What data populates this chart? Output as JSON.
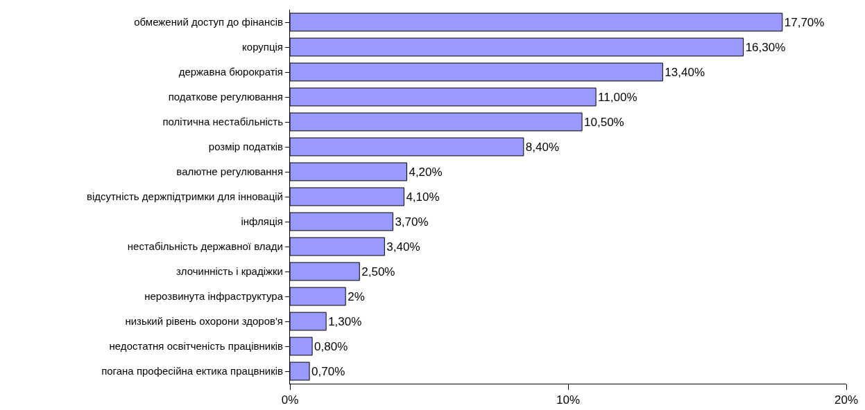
{
  "chart_data": {
    "type": "bar",
    "orientation": "horizontal",
    "categories": [
      "обмежений доступ до фінансів",
      "корупція",
      "державна бюрократія",
      "податкове регулювання",
      "політична нестабільність",
      "розмір податків",
      "валютне регулювання",
      "відсутність держпідтримки для інновацій",
      "інфляція",
      "нестабільність державної влади",
      "злочинність і крадіжки",
      "нерозвинута інфраструктура",
      "низький рівень охорони здоров'я",
      "недостатня освітченість працівників",
      "погана професійна ектика працвників"
    ],
    "values": [
      17.7,
      16.3,
      13.4,
      11.0,
      10.5,
      8.4,
      4.2,
      4.1,
      3.7,
      3.4,
      2.5,
      2,
      1.3,
      0.8,
      0.7
    ],
    "value_labels": [
      "17,70%",
      "16,30%",
      "13,40%",
      "11,00%",
      "10,50%",
      "8,40%",
      "4,20%",
      "4,10%",
      "3,70%",
      "3,40%",
      "2,50%",
      "2%",
      "1,30%",
      "0,80%",
      "0,70%"
    ],
    "color": "#9999ff",
    "xlim": [
      0,
      20
    ],
    "xticks": [
      {
        "value": 0,
        "label": "0%"
      },
      {
        "value": 10,
        "label": "10%"
      },
      {
        "value": 20,
        "label": "20%"
      }
    ],
    "grid": false
  }
}
